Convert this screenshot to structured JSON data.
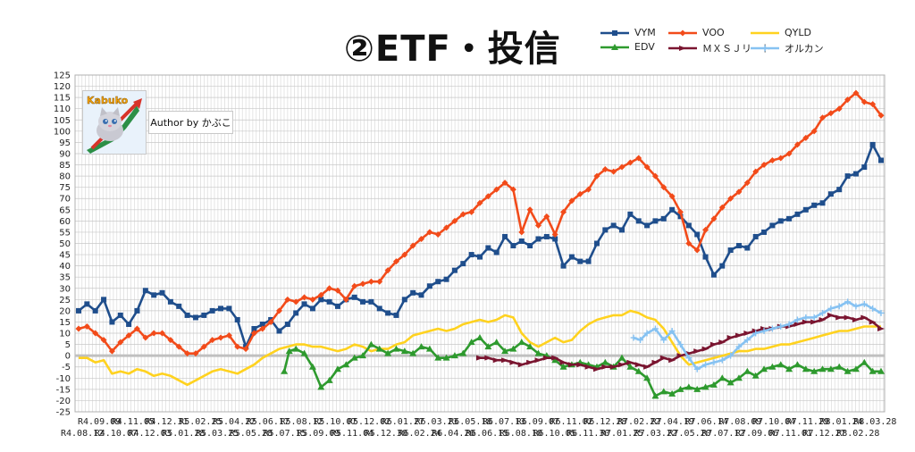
{
  "title": "②ETF・投信",
  "author_label": "Author by かぶこ",
  "logo_text": "Kabuko",
  "chart_data": {
    "type": "line",
    "ylim": [
      -25,
      125
    ],
    "y_step": 5,
    "grid": true,
    "legend_position": "top-right",
    "x_labels_top": [
      "R4.09.09",
      "R4.11.05",
      "R4.12.31",
      "R5.02.25",
      "R5.04.22",
      "R5.06.17",
      "R5.08.12",
      "R5.10.07",
      "R5.12.02",
      "R6.01.27",
      "R6.03.23",
      "R6.05.18",
      "R6.07.13",
      "R6.09.07",
      "R6.11.02",
      "R6.12.28",
      "R7.02.22",
      "R7.04.19",
      "R7.06.14",
      "R7.08.09",
      "R7.10.04",
      "R7.11.29",
      "R8.01.24",
      "R8.03.28"
    ],
    "x_labels_bottom": [
      "R4.08.12",
      "R4.10.07",
      "R4.12.03",
      "R5.01.28",
      "R5.03.25",
      "R5.05.20",
      "R5.07.15",
      "R5.09.09",
      "R5.11.04",
      "R5.12.30",
      "R6.02.24",
      "R6.04.20",
      "R6.06.15",
      "R6.08.10",
      "R6.10.05",
      "R6.11.30",
      "R7.01.25",
      "R7.03.22",
      "R7.05.20",
      "R7.07.12",
      "R7.09.06",
      "R7.11.01",
      "R7.12.27",
      "R8.02.28"
    ],
    "x_start": 0,
    "x_end": 48,
    "series": [
      {
        "name": "VYM",
        "color": "#1f4e8c",
        "marker": "square",
        "x": [
          0,
          0.5,
          1,
          1.5,
          2,
          2.5,
          3,
          3.5,
          4,
          4.5,
          5,
          5.5,
          6,
          6.5,
          7,
          7.5,
          8,
          8.5,
          9,
          9.5,
          10,
          10.5,
          11,
          11.5,
          12,
          12.5,
          13,
          13.5,
          14,
          14.5,
          15,
          15.5,
          16,
          16.5,
          17,
          17.5,
          18,
          18.5,
          19,
          19.5,
          20,
          20.5,
          21,
          21.5,
          22,
          22.5,
          23,
          23.5,
          24,
          24.5,
          25,
          25.5,
          26,
          26.5,
          27,
          27.5,
          28,
          28.5,
          29,
          29.5,
          30,
          30.5,
          31,
          31.5,
          32,
          32.5,
          33,
          33.5,
          34,
          34.5,
          35,
          35.5,
          36,
          36.5,
          37,
          37.5,
          38,
          38.5,
          39,
          39.5,
          40,
          40.5,
          41,
          41.5,
          42,
          42.5,
          43,
          43.5,
          44,
          44.5,
          45,
          45.5,
          46,
          46.5,
          47,
          47.5,
          48
        ],
        "y": [
          20,
          23,
          20,
          25,
          15,
          18,
          14,
          20,
          29,
          27,
          28,
          24,
          22,
          18,
          17,
          18,
          20,
          21,
          21,
          16,
          4,
          12,
          14,
          16,
          11,
          14,
          19,
          23,
          21,
          25,
          24,
          22,
          25,
          26,
          24,
          24,
          21,
          19,
          18,
          25,
          28,
          27,
          31,
          33,
          34,
          38,
          41,
          45,
          44,
          48,
          46,
          53,
          49,
          51,
          49,
          52,
          53,
          52,
          40,
          44,
          42,
          42,
          50,
          56,
          58,
          56,
          63,
          60,
          58,
          60,
          61,
          65,
          62,
          58,
          54,
          44,
          36,
          40,
          47,
          49,
          48,
          53,
          55,
          58,
          60,
          61,
          63,
          65,
          67,
          68,
          72,
          74,
          80,
          81,
          84,
          94,
          87
        ]
      },
      {
        "name": "VOO",
        "color": "#f24b1a",
        "marker": "diamond",
        "x": [
          0,
          0.5,
          1,
          1.5,
          2,
          2.5,
          3,
          3.5,
          4,
          4.5,
          5,
          5.5,
          6,
          6.5,
          7,
          7.5,
          8,
          8.5,
          9,
          9.5,
          10,
          10.5,
          11,
          11.5,
          12,
          12.5,
          13,
          13.5,
          14,
          14.5,
          15,
          15.5,
          16,
          16.5,
          17,
          17.5,
          18,
          18.5,
          19,
          19.5,
          20,
          20.5,
          21,
          21.5,
          22,
          22.5,
          23,
          23.5,
          24,
          24.5,
          25,
          25.5,
          26,
          26.5,
          27,
          27.5,
          28,
          28.5,
          29,
          29.5,
          30,
          30.5,
          31,
          31.5,
          32,
          32.5,
          33,
          33.5,
          34,
          34.5,
          35,
          35.5,
          36,
          36.5,
          37,
          37.5,
          38,
          38.5,
          39,
          39.5,
          40,
          40.5,
          41,
          41.5,
          42,
          42.5,
          43,
          43.5,
          44,
          44.5,
          45,
          45.5,
          46,
          46.5,
          47,
          47.5,
          48
        ],
        "y": [
          12,
          13,
          10,
          7,
          2,
          6,
          9,
          12,
          8,
          10,
          10,
          7,
          4,
          1,
          1,
          4,
          7,
          8,
          9,
          4,
          3,
          10,
          12,
          15,
          20,
          25,
          24,
          26,
          25,
          27,
          30,
          29,
          25,
          31,
          32,
          33,
          33,
          38,
          42,
          45,
          49,
          52,
          55,
          54,
          57,
          60,
          63,
          64,
          68,
          71,
          74,
          77,
          74,
          55,
          65,
          58,
          62,
          54,
          64,
          69,
          72,
          74,
          80,
          83,
          82,
          84,
          86,
          88,
          84,
          80,
          75,
          71,
          64,
          50,
          47,
          56,
          61,
          66,
          70,
          73,
          77,
          82,
          85,
          87,
          88,
          90,
          94,
          97,
          100,
          106,
          108,
          110,
          114,
          117,
          113,
          112,
          107
        ]
      },
      {
        "name": "QYLD",
        "color": "#ffd21f",
        "marker": "none",
        "x": [
          0,
          0.5,
          1,
          1.5,
          2,
          2.5,
          3,
          3.5,
          4,
          4.5,
          5,
          5.5,
          6,
          6.5,
          7,
          7.5,
          8,
          8.5,
          9,
          9.5,
          10,
          10.5,
          11,
          11.5,
          12,
          12.5,
          13,
          13.5,
          14,
          14.5,
          15,
          15.5,
          16,
          16.5,
          17,
          17.5,
          18,
          18.5,
          19,
          19.5,
          20,
          20.5,
          21,
          21.5,
          22,
          22.5,
          23,
          23.5,
          24,
          24.5,
          25,
          25.5,
          26,
          26.5,
          27,
          27.5,
          28,
          28.5,
          29,
          29.5,
          30,
          30.5,
          31,
          31.5,
          32,
          32.5,
          33,
          33.5,
          34,
          34.5,
          35,
          35.5,
          36,
          36.5,
          37,
          37.5,
          38,
          38.5,
          39,
          39.5,
          40,
          40.5,
          41,
          41.5,
          42,
          42.5,
          43,
          43.5,
          44,
          44.5,
          45,
          45.5,
          46,
          46.5,
          47,
          47.5,
          48
        ],
        "y": [
          -1,
          -1,
          -3,
          -2,
          -8,
          -7,
          -8,
          -6,
          -7,
          -9,
          -8,
          -9,
          -11,
          -13,
          -11,
          -9,
          -7,
          -6,
          -7,
          -8,
          -6,
          -4,
          -1,
          1,
          3,
          4,
          5,
          5,
          4,
          4,
          3,
          2,
          3,
          5,
          4,
          2,
          3,
          3,
          5,
          6,
          9,
          10,
          11,
          12,
          11,
          12,
          14,
          15,
          16,
          15,
          16,
          18,
          17,
          10,
          6,
          4,
          6,
          8,
          6,
          7,
          11,
          14,
          16,
          17,
          18,
          18,
          20,
          19,
          17,
          16,
          12,
          6,
          0,
          -4,
          -3,
          -2,
          -1,
          0,
          1,
          2,
          2,
          3,
          3,
          4,
          5,
          5,
          6,
          7,
          8,
          9,
          10,
          11,
          11,
          12,
          13,
          13,
          13
        ]
      },
      {
        "name": "EDV",
        "color": "#2e9a2e",
        "marker": "triangle",
        "x": [
          12.3,
          12.6,
          13,
          13.5,
          14,
          14.5,
          15,
          15.5,
          16,
          16.5,
          17,
          17.5,
          18,
          18.5,
          19,
          19.5,
          20,
          20.5,
          21,
          21.5,
          22,
          22.5,
          23,
          23.5,
          24,
          24.5,
          25,
          25.5,
          26,
          26.5,
          27,
          27.5,
          28,
          28.5,
          29,
          29.5,
          30,
          30.5,
          31,
          31.5,
          32,
          32.5,
          33,
          33.5,
          34,
          34.5,
          35,
          35.5,
          36,
          36.5,
          37,
          37.5,
          38,
          38.5,
          39,
          39.5,
          40,
          40.5,
          41,
          41.5,
          42,
          42.5,
          43,
          43.5,
          44,
          44.5,
          45,
          45.5,
          46,
          46.5,
          47,
          47.5,
          48
        ],
        "y": [
          -7,
          2,
          3,
          1,
          -5,
          -14,
          -11,
          -6,
          -4,
          -1,
          0,
          5,
          3,
          1,
          3,
          2,
          1,
          4,
          3,
          -1,
          -1,
          0,
          1,
          6,
          8,
          4,
          6,
          2,
          3,
          6,
          4,
          1,
          0,
          -2,
          -5,
          -4,
          -3,
          -4,
          -5,
          -3,
          -5,
          -1,
          -5,
          -7,
          -10,
          -18,
          -16,
          -17,
          -15,
          -14,
          -15,
          -14,
          -13,
          -10,
          -12,
          -10,
          -7,
          -9,
          -6,
          -5,
          -4,
          -6,
          -4,
          -6,
          -7,
          -6,
          -6,
          -5,
          -7,
          -6,
          -3,
          -7,
          -7
        ]
      },
      {
        "name": "ＭＸＳＪリート",
        "color": "#7a1530",
        "marker": "arrow",
        "x": [
          24,
          24.5,
          25,
          25.5,
          26,
          26.5,
          27,
          27.5,
          28,
          28.5,
          29,
          29.5,
          30,
          30.5,
          31,
          31.5,
          32,
          32.5,
          33,
          33.5,
          34,
          34.5,
          35,
          35.5,
          36,
          36.5,
          37,
          37.5,
          38,
          38.5,
          39,
          39.5,
          40,
          40.5,
          41,
          41.5,
          42,
          42.5,
          43,
          43.5,
          44,
          44.5,
          45,
          45.5,
          46,
          46.5,
          47,
          47.5,
          48
        ],
        "y": [
          -1,
          -1,
          -2,
          -2,
          -3,
          -4,
          -3,
          -2,
          -1,
          -1,
          -3,
          -4,
          -4,
          -5,
          -6,
          -5,
          -5,
          -4,
          -3,
          -4,
          -5,
          -3,
          -1,
          -2,
          0,
          1,
          2,
          3,
          5,
          6,
          8,
          9,
          10,
          11,
          12,
          12,
          13,
          13,
          14,
          15,
          15,
          16,
          18,
          17,
          17,
          16,
          17,
          15,
          12
        ]
      },
      {
        "name": "オルカン",
        "color": "#86c2f2",
        "marker": "star",
        "x": [
          33.2,
          33.6,
          34,
          34.5,
          35,
          35.5,
          36,
          36.5,
          37,
          37.5,
          38,
          38.5,
          39,
          39.5,
          40,
          40.5,
          41,
          41.5,
          42,
          42.5,
          43,
          43.5,
          44,
          44.5,
          45,
          45.5,
          46,
          46.5,
          47,
          47.5,
          48
        ],
        "y": [
          8,
          7,
          10,
          12,
          7,
          11,
          5,
          -1,
          -6,
          -4,
          -3,
          -2,
          0,
          4,
          7,
          10,
          11,
          12,
          13,
          14,
          16,
          17,
          17,
          19,
          21,
          22,
          24,
          22,
          23,
          21,
          19
        ]
      }
    ]
  }
}
